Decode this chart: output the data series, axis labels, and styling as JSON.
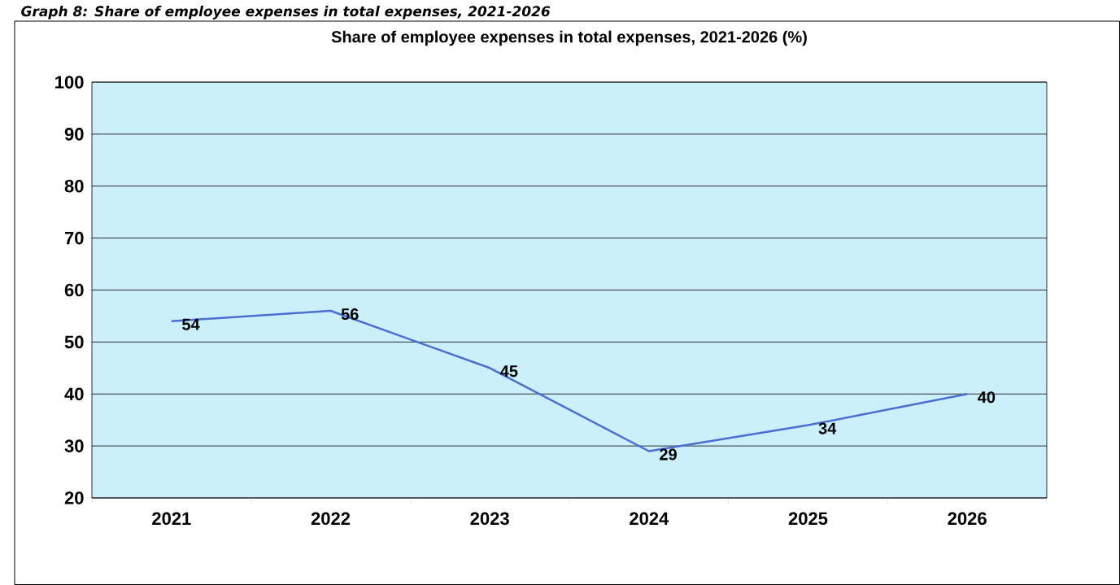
{
  "chart_data": {
    "type": "line",
    "title": "Share of employee expenses in total expenses, 2021-2026 (%)",
    "annotations": [
      "Graph 8: Share of employee expenses in total expenses, 2021-2026"
    ],
    "categories": [
      "2021",
      "2022",
      "2023",
      "2024",
      "2025",
      "2026"
    ],
    "series": [
      {
        "color": "#4a6fd0",
        "values": [
          54,
          56,
          45,
          29,
          34,
          40
        ]
      }
    ],
    "ylim": [
      20,
      100
    ],
    "yticks": [
      20,
      30,
      40,
      50,
      60,
      70,
      80,
      90,
      100
    ],
    "grid": "y",
    "data_labels": true,
    "marker": "none",
    "line_style": "solid"
  }
}
